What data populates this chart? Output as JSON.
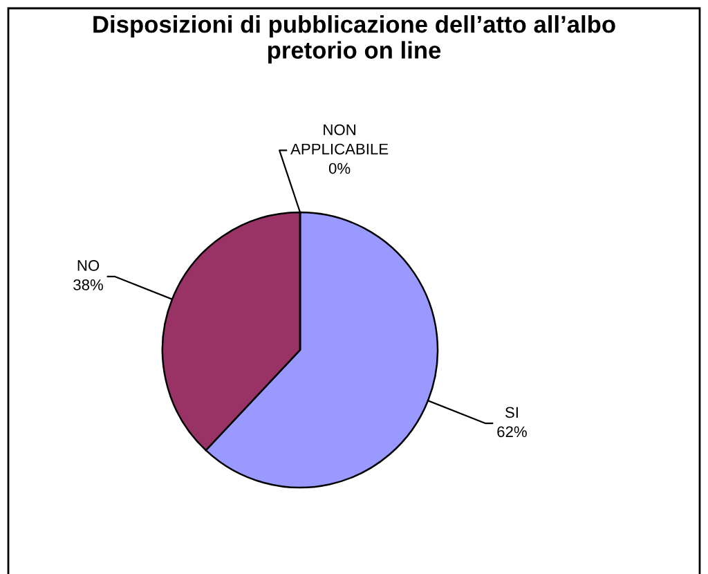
{
  "chart_data": {
    "type": "pie",
    "title": "Disposizioni di pubblicazione dell’atto all’albo pretorio on line",
    "categories": [
      "SI",
      "NO",
      "NON APPLICABILE"
    ],
    "values": [
      62,
      38,
      0
    ],
    "colors": [
      "#9999ff",
      "#993366",
      "#ffffcc"
    ],
    "value_labels": [
      "62%",
      "38%",
      "0%"
    ]
  }
}
